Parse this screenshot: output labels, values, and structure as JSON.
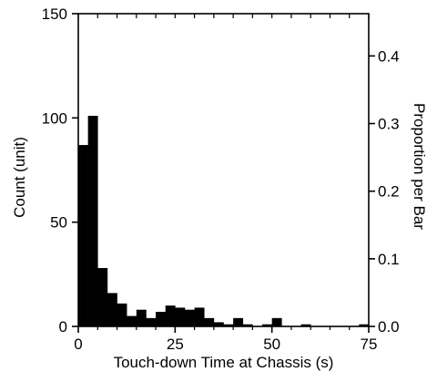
{
  "chart_data": {
    "type": "bar",
    "subtype": "histogram",
    "title": "",
    "xlabel": "Touch-down Time at Chassis (s)",
    "ylabel_left": "Count (unit)",
    "ylabel_right": "Proportion per Bar",
    "xlim": [
      0,
      75
    ],
    "ylim_left": [
      0,
      150
    ],
    "ylim_right": [
      0,
      0.4625
    ],
    "bin_width": 2.5,
    "x_ticks": [
      0,
      25,
      50,
      75
    ],
    "y_ticks_left": [
      0,
      50,
      100,
      150
    ],
    "y_ticks_right": [
      0.0,
      0.1,
      0.2,
      0.3,
      0.4
    ],
    "y_tick_labels_right": [
      "0.0",
      "0.1",
      "0.2",
      "0.3",
      "0.4"
    ],
    "bin_starts": [
      0,
      2.5,
      5,
      7.5,
      10,
      12.5,
      15,
      17.5,
      20,
      22.5,
      25,
      27.5,
      30,
      32.5,
      35,
      37.5,
      40,
      42.5,
      45,
      47.5,
      50,
      52.5,
      55,
      57.5,
      60,
      62.5,
      65,
      67.5,
      70,
      72.5
    ],
    "values": [
      87,
      101,
      28,
      16,
      11,
      5,
      8,
      4,
      7,
      10,
      9,
      8,
      9,
      4,
      2,
      1,
      4,
      1,
      0,
      1,
      4,
      0,
      0,
      1,
      0,
      0,
      0,
      0,
      0,
      1
    ],
    "bar_color": "#000000",
    "grid": false
  }
}
